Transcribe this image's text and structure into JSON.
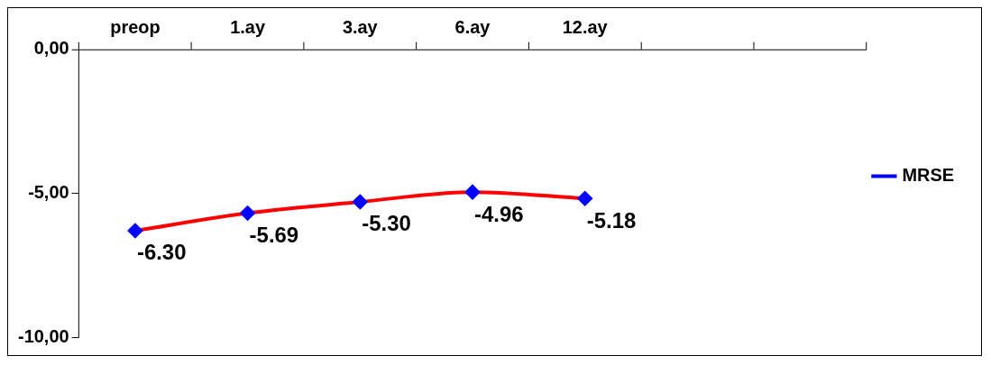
{
  "chart_data": {
    "type": "line",
    "categories": [
      "preop",
      "1.ay",
      "3.ay",
      "6.ay",
      "12.ay",
      null,
      null
    ],
    "series": [
      {
        "name": "MRSE",
        "color": "#ff0000",
        "values": [
          -6.3,
          -5.69,
          -5.3,
          -4.96,
          -5.18,
          null,
          null
        ],
        "value_labels": [
          "-6.30",
          "-5.69",
          "-5.30",
          "-4.96",
          "-5.18",
          null,
          null
        ]
      }
    ],
    "ylim": [
      -10,
      0
    ],
    "yticks": [
      {
        "value": 0,
        "label": "0,00"
      },
      {
        "value": -5,
        "label": "-5,00"
      },
      {
        "value": -10,
        "label": "-10,00"
      }
    ],
    "grid": false,
    "legend": "right",
    "marker": "diamond",
    "line_style": "solid"
  }
}
